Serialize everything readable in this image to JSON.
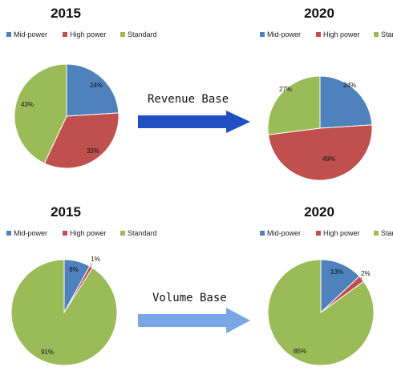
{
  "colors": {
    "mid_power": "#4f81bd",
    "high_power": "#c0504d",
    "standard": "#9bbb59",
    "slice_stroke": "#ffffff",
    "arrow_revenue": "#1f4fc0",
    "arrow_volume": "#7aa6e6"
  },
  "arrows": {
    "revenue": {
      "label": "Revenue Base"
    },
    "volume": {
      "label": "Volume Base"
    }
  },
  "chart_data": [
    {
      "type": "pie",
      "title": "2015",
      "group": "Revenue Base",
      "legend": [
        "Mid-power",
        "High power",
        "Standard"
      ],
      "slices": [
        {
          "name": "Mid-power",
          "value": 24,
          "label": "24%"
        },
        {
          "name": "High power",
          "value": 33,
          "label": "33%"
        },
        {
          "name": "Standard",
          "value": 43,
          "label": "43%"
        }
      ]
    },
    {
      "type": "pie",
      "title": "2020",
      "group": "Revenue Base",
      "legend": [
        "Mid-power",
        "High power",
        "Standard"
      ],
      "slices": [
        {
          "name": "Mid-power",
          "value": 24,
          "label": "24%"
        },
        {
          "name": "High power",
          "value": 49,
          "label": "49%"
        },
        {
          "name": "Standard",
          "value": 27,
          "label": "27%"
        }
      ]
    },
    {
      "type": "pie",
      "title": "2015",
      "group": "Volume Base",
      "legend": [
        "Mid-power",
        "High power",
        "Standard"
      ],
      "slices": [
        {
          "name": "Mid-power",
          "value": 8,
          "label": "8%"
        },
        {
          "name": "High power",
          "value": 1,
          "label": "1%"
        },
        {
          "name": "Standard",
          "value": 91,
          "label": "91%"
        }
      ]
    },
    {
      "type": "pie",
      "title": "2020",
      "group": "Volume Base",
      "legend": [
        "Mid-power",
        "High power",
        "Standard"
      ],
      "slices": [
        {
          "name": "Mid-power",
          "value": 13,
          "label": "13%"
        },
        {
          "name": "High power",
          "value": 2,
          "label": "2%"
        },
        {
          "name": "Standard",
          "value": 85,
          "label": "85%"
        }
      ]
    }
  ]
}
